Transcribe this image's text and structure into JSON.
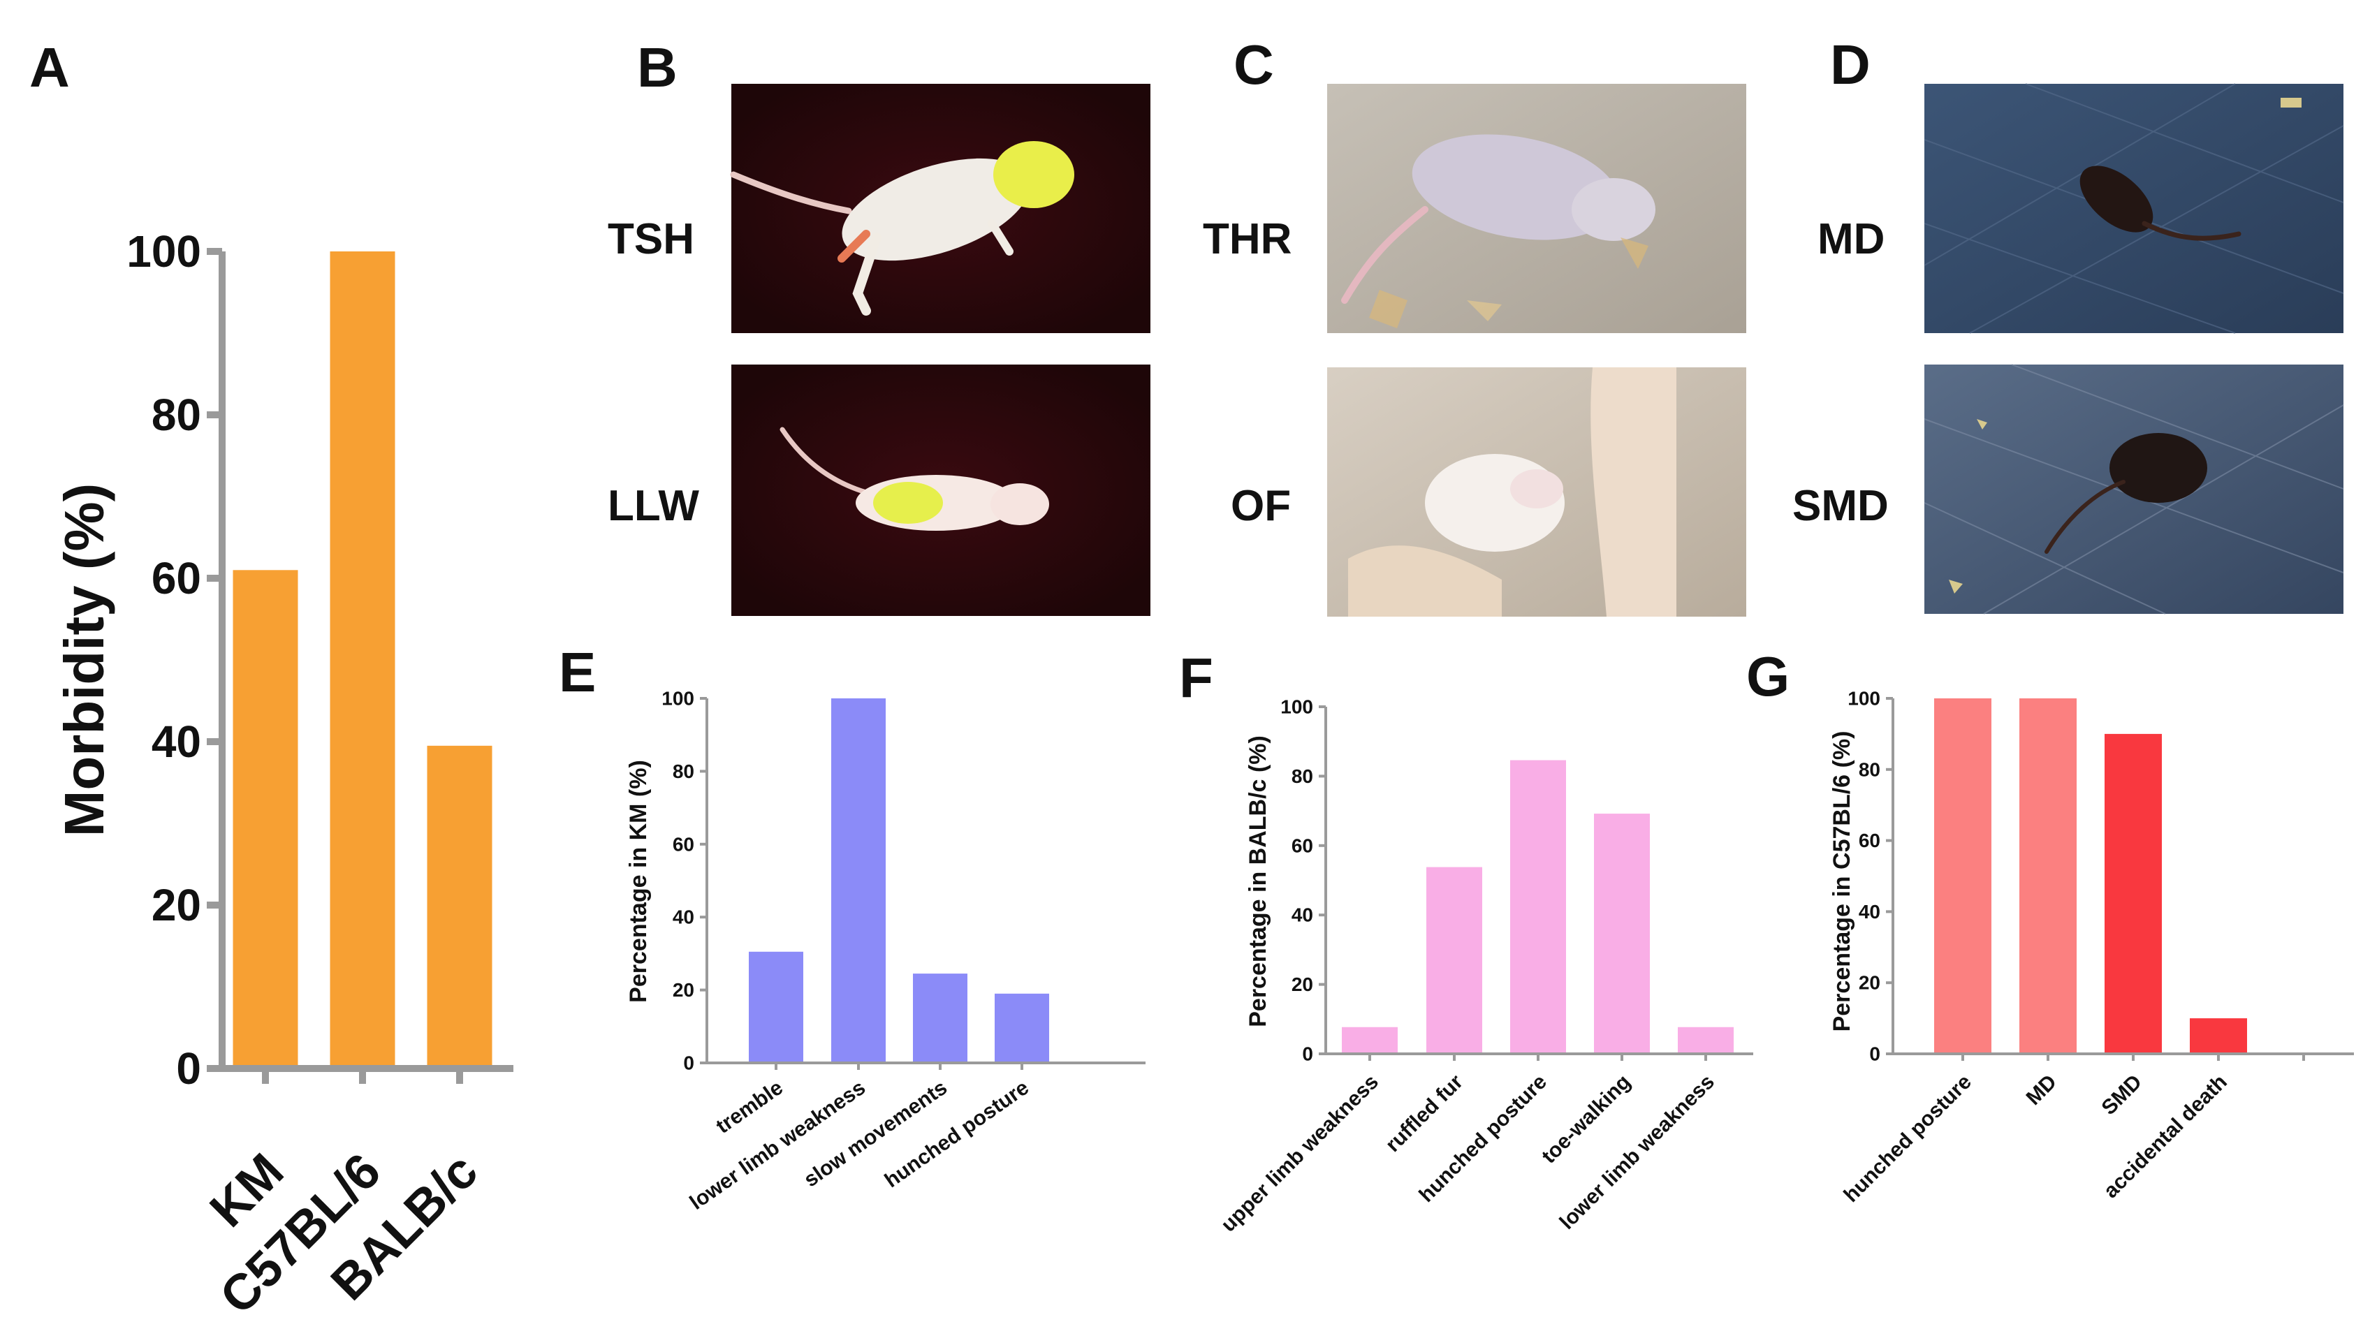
{
  "panels": {
    "A": "A",
    "B": "B",
    "C": "C",
    "D": "D",
    "E": "E",
    "F": "F",
    "G": "G"
  },
  "photo_labels": {
    "B_top": "TSH",
    "B_bottom": "LLW",
    "C_top": "THR",
    "C_bottom": "OF",
    "D_top": "MD",
    "D_bottom": "SMD"
  },
  "colors": {
    "orange": "#F7A033",
    "blue": "#8B8BF8",
    "pink": "#F9AEE6",
    "salmon": "#FB8080",
    "red": "#F9383F",
    "axis": "#9a9a9a"
  },
  "chart_data": [
    {
      "panel": "A",
      "type": "bar",
      "categories": [
        "KM",
        "C57BL/6",
        "BALB/c"
      ],
      "values": [
        61,
        100,
        39.5
      ],
      "ylabel": "Morbidity (%)",
      "xlabel": "",
      "ylim": [
        0,
        100
      ],
      "yticks": [
        "0",
        "20",
        "40",
        "60",
        "80",
        "100"
      ]
    },
    {
      "panel": "E",
      "type": "bar",
      "categories": [
        "tremble",
        "lower limb weakness",
        "slow movements",
        "hunched posture"
      ],
      "values": [
        30.5,
        100,
        24.5,
        19
      ],
      "ylabel": "Percentage in KM (%)",
      "xlabel": "",
      "ylim": [
        0,
        100
      ],
      "yticks": [
        "0",
        "20",
        "40",
        "60",
        "80",
        "100"
      ]
    },
    {
      "panel": "F",
      "type": "bar",
      "categories": [
        "upper limb weakness",
        "ruffled fur",
        "hunched posture",
        "toe-walking",
        "lower limb weakness"
      ],
      "values": [
        7.7,
        53.8,
        84.6,
        69.2,
        7.7
      ],
      "ylabel": "Percentage in BALB/c (%)",
      "xlabel": "",
      "ylim": [
        0,
        100
      ],
      "yticks": [
        "0",
        "20",
        "40",
        "60",
        "80",
        "100"
      ]
    },
    {
      "panel": "G",
      "type": "bar",
      "categories": [
        "hunched posture",
        "MD",
        "SMD",
        "accidental death"
      ],
      "values": [
        100,
        100,
        90,
        10
      ],
      "ylabel": "Percentage in C57BL/6 (%)",
      "xlabel": "",
      "ylim": [
        0,
        100
      ],
      "yticks": [
        "0",
        "20",
        "40",
        "60",
        "80",
        "100"
      ]
    }
  ]
}
